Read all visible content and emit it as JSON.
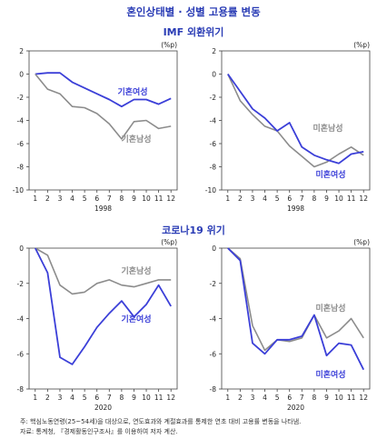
{
  "title": "혼인상태별 · 성별 고용률 변동",
  "sections": {
    "imf": "IMF 외환위기",
    "covid": "코로나19 위기"
  },
  "footnotes": [
    "주: 핵심노동연령(25~54세)을 대상으로, 연도효과와 계절효과를 통제한 연초 대비 고용률 변동을 나타냄.",
    "자료: 통계청, 『경제활동인구조사』를 이용하여 저자 계산."
  ],
  "colors": {
    "married_female": "#3b3fd8",
    "married_male": "#8c8c8c"
  },
  "chart_data": [
    {
      "type": "line",
      "unit": "(%p)",
      "xlabel": "1998",
      "x": [
        1,
        2,
        3,
        4,
        5,
        6,
        7,
        8,
        9,
        10,
        11,
        12
      ],
      "ylim": [
        -10,
        2
      ],
      "yticks": [
        2,
        0,
        -2,
        -4,
        -6,
        -8,
        -10
      ],
      "series": [
        {
          "name": "기혼여성",
          "color": "#3b3fd8",
          "values": [
            0,
            0.1,
            0.1,
            -0.7,
            -1.2,
            -1.7,
            -2.2,
            -2.8,
            -2.2,
            -2.2,
            -2.6,
            -2.1
          ]
        },
        {
          "name": "기혼남성",
          "color": "#8c8c8c",
          "values": [
            0,
            -1.3,
            -1.7,
            -2.8,
            -2.9,
            -3.4,
            -4.3,
            -5.6,
            -4.1,
            -4.0,
            -4.7,
            -4.5
          ]
        }
      ]
    },
    {
      "type": "line",
      "unit": "(%p)",
      "xlabel": "1998",
      "x": [
        1,
        2,
        3,
        4,
        5,
        6,
        7,
        8,
        9,
        10,
        11,
        12
      ],
      "ylim": [
        -10,
        2
      ],
      "yticks": [
        2,
        0,
        -2,
        -4,
        -6,
        -8,
        -10
      ],
      "series": [
        {
          "name": "미혼남성",
          "color": "#8c8c8c",
          "values": [
            0,
            -2.3,
            -3.5,
            -4.5,
            -4.9,
            -6.2,
            -7.1,
            -8.0,
            -7.6,
            -6.9,
            -6.3,
            -7.0
          ]
        },
        {
          "name": "미혼여성",
          "color": "#3b3fd8",
          "values": [
            0,
            -1.5,
            -3.0,
            -3.8,
            -4.9,
            -4.2,
            -6.3,
            -7.0,
            -7.4,
            -7.7,
            -6.9,
            -6.7
          ]
        }
      ]
    },
    {
      "type": "line",
      "unit": "(%p)",
      "xlabel": "2020",
      "x": [
        1,
        2,
        3,
        4,
        5,
        6,
        7,
        8,
        9,
        10,
        11,
        12
      ],
      "ylim": [
        -8,
        0
      ],
      "yticks": [
        0,
        -2,
        -4,
        -6,
        -8
      ],
      "series": [
        {
          "name": "기혼남성",
          "color": "#8c8c8c",
          "values": [
            0,
            -0.4,
            -2.1,
            -2.6,
            -2.5,
            -2.0,
            -1.8,
            -2.1,
            -2.2,
            -2.0,
            -1.8,
            -1.8
          ]
        },
        {
          "name": "기혼여성",
          "color": "#3b3fd8",
          "values": [
            0,
            -1.4,
            -6.2,
            -6.6,
            -5.6,
            -4.5,
            -3.7,
            -3.0,
            -3.9,
            -3.2,
            -2.1,
            -3.3
          ]
        }
      ]
    },
    {
      "type": "line",
      "unit": "(%p)",
      "xlabel": "2020",
      "x": [
        1,
        2,
        3,
        4,
        5,
        6,
        7,
        8,
        9,
        10,
        11,
        12
      ],
      "ylim": [
        -8,
        0
      ],
      "yticks": [
        0,
        -2,
        -4,
        -6,
        -8
      ],
      "series": [
        {
          "name": "미혼남성",
          "color": "#8c8c8c",
          "values": [
            0,
            -0.6,
            -4.4,
            -5.8,
            -5.2,
            -5.3,
            -5.1,
            -3.8,
            -5.1,
            -4.7,
            -4.0,
            -5.1
          ]
        },
        {
          "name": "미혼여성",
          "color": "#3b3fd8",
          "values": [
            0,
            -0.7,
            -5.4,
            -6.0,
            -5.2,
            -5.2,
            -5.0,
            -3.8,
            -6.1,
            -5.4,
            -5.5,
            -6.9
          ]
        }
      ]
    }
  ]
}
